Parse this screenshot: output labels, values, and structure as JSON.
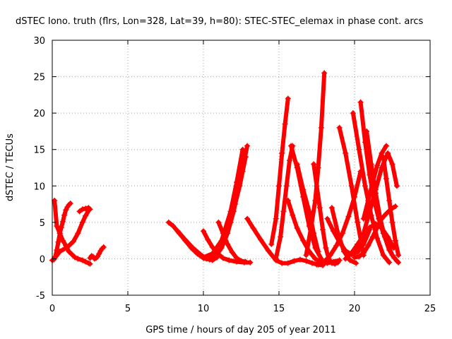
{
  "chart_data": {
    "type": "scatter",
    "title": "dSTEC Iono. truth (flrs, Lon=328, Lat=39, h=80): STEC-STEC_elemax in phase cont. arcs",
    "xlabel": "GPS time / hours of day 205 of year 2011",
    "ylabel": "dSTEC  / TECUs",
    "xlim": [
      0,
      25
    ],
    "ylim": [
      -5,
      30
    ],
    "xticks": [
      0,
      5,
      10,
      15,
      20,
      25
    ],
    "yticks": [
      -5,
      0,
      5,
      10,
      15,
      20,
      25,
      30
    ],
    "grid": true,
    "marker": "+",
    "color": "#ff0000",
    "series": [
      {
        "x": [
          0.15,
          0.3,
          0.5,
          0.7,
          0.9,
          1.1,
          1.3,
          1.5,
          1.7,
          2.0,
          2.2,
          2.4,
          2.5
        ],
        "y": [
          8.0,
          4.5,
          3.5,
          2.5,
          1.8,
          1.0,
          0.6,
          0.2,
          0.0,
          -0.2,
          -0.4,
          -0.6,
          -0.7
        ]
      },
      {
        "x": [
          0.0,
          0.1,
          0.2,
          0.3,
          0.4,
          0.5,
          0.6,
          0.7,
          0.8,
          0.9,
          1.0,
          1.1,
          1.2
        ],
        "y": [
          -0.2,
          -0.1,
          0.3,
          1.2,
          2.3,
          3.5,
          4.3,
          5.1,
          6.0,
          6.7,
          7.1,
          7.4,
          7.6
        ]
      },
      {
        "x": [
          0.1,
          0.5,
          1.0,
          1.4,
          1.7,
          2.0,
          2.2,
          2.4
        ],
        "y": [
          -0.1,
          1.0,
          1.6,
          2.4,
          3.5,
          5.0,
          5.9,
          6.6
        ]
      },
      {
        "x": [
          1.8,
          2.0,
          2.2,
          2.4,
          2.5
        ],
        "y": [
          6.5,
          6.8,
          6.9,
          7.0,
          6.8
        ]
      },
      {
        "x": [
          2.5,
          2.6,
          2.7,
          2.8,
          2.9,
          3.0,
          3.1,
          3.2,
          3.3,
          3.4
        ],
        "y": [
          0.1,
          0.4,
          0.3,
          0.0,
          0.1,
          0.3,
          0.7,
          1.1,
          1.4,
          1.6
        ]
      },
      {
        "x": [
          7.7,
          8.0,
          8.4,
          8.8,
          9.2,
          9.6,
          10.0,
          10.4,
          10.8,
          11.2,
          11.6,
          12.0,
          12.3,
          12.6,
          12.9
        ],
        "y": [
          5.0,
          4.5,
          3.5,
          2.5,
          1.5,
          0.7,
          0.1,
          -0.1,
          0.3,
          1.5,
          3.5,
          6.5,
          9.5,
          12.5,
          15.5
        ]
      },
      {
        "x": [
          8.3,
          8.8,
          9.3,
          9.8,
          10.2,
          10.6,
          10.9
        ],
        "y": [
          3.8,
          2.6,
          1.5,
          0.6,
          0.0,
          -0.2,
          0.2
        ]
      },
      {
        "x": [
          10.0,
          10.3,
          10.6,
          10.9,
          11.3,
          11.7,
          12.2,
          12.7,
          13.1
        ],
        "y": [
          3.8,
          2.6,
          1.6,
          0.8,
          0.1,
          -0.2,
          -0.4,
          -0.5,
          -0.5
        ]
      },
      {
        "x": [
          10.0,
          10.6,
          11.2,
          11.8,
          12.2,
          12.6
        ],
        "y": [
          0.2,
          0.7,
          2.5,
          6.5,
          10.5,
          15.0
        ]
      },
      {
        "x": [
          11.0,
          11.3,
          11.6,
          11.9,
          12.2,
          12.5,
          12.8
        ],
        "y": [
          5.0,
          3.5,
          2.0,
          0.9,
          0.1,
          -0.3,
          -0.4
        ]
      },
      {
        "x": [
          11.8,
          12.1,
          12.4,
          12.6,
          12.8
        ],
        "y": [
          5.0,
          7.5,
          10.0,
          12.0,
          14.0
        ]
      },
      {
        "x": [
          12.9,
          13.3,
          13.8,
          14.3,
          14.8,
          15.2,
          15.6,
          16.0,
          16.4,
          16.8,
          17.2,
          17.6,
          17.9
        ],
        "y": [
          5.5,
          4.2,
          2.6,
          1.1,
          -0.2,
          -0.6,
          -0.6,
          -0.3,
          -0.1,
          -0.3,
          -0.6,
          -0.8,
          -0.9
        ]
      },
      {
        "x": [
          14.5,
          14.8,
          15.0,
          15.2,
          15.4,
          15.6
        ],
        "y": [
          2.0,
          5.5,
          10.0,
          14.5,
          18.5,
          22.0
        ]
      },
      {
        "x": [
          14.8,
          15.1,
          15.3,
          15.5,
          15.7,
          15.9
        ],
        "y": [
          0.0,
          3.0,
          6.5,
          10.0,
          13.5,
          15.5
        ]
      },
      {
        "x": [
          15.6,
          15.9,
          16.2,
          16.6,
          17.0,
          17.4,
          17.8,
          18.2,
          18.6,
          19.0
        ],
        "y": [
          8.0,
          6.0,
          4.2,
          2.5,
          1.0,
          0.0,
          -0.5,
          -0.6,
          -0.4,
          -0.2
        ]
      },
      {
        "x": [
          15.8,
          16.2,
          16.6,
          17.0,
          17.4,
          17.8
        ],
        "y": [
          15.5,
          12.5,
          8.5,
          4.5,
          1.5,
          0.0
        ]
      },
      {
        "x": [
          16.2,
          16.6,
          17.0,
          17.3,
          17.6
        ],
        "y": [
          13.0,
          9.5,
          6.5,
          3.5,
          1.0
        ]
      },
      {
        "x": [
          16.8,
          17.1,
          17.4,
          17.6,
          17.8,
          18.0
        ],
        "y": [
          0.5,
          4.0,
          8.0,
          12.5,
          18.0,
          25.5
        ]
      },
      {
        "x": [
          17.3,
          17.5,
          17.7,
          17.9,
          18.1,
          18.3,
          18.5,
          18.7,
          18.9
        ],
        "y": [
          13.0,
          10.0,
          7.0,
          4.0,
          1.5,
          0.0,
          -0.6,
          -0.7,
          -0.5
        ]
      },
      {
        "x": [
          17.5,
          18.0,
          18.4,
          18.8,
          19.2,
          19.6,
          20.0,
          20.4
        ],
        "y": [
          -0.8,
          -0.4,
          0.5,
          1.8,
          3.5,
          5.8,
          8.5,
          12.0
        ]
      },
      {
        "x": [
          18.2,
          18.6,
          19.0,
          19.4,
          19.8,
          20.2,
          20.6,
          21.0
        ],
        "y": [
          5.5,
          3.8,
          2.3,
          1.1,
          0.6,
          0.9,
          2.0,
          4.0
        ]
      },
      {
        "x": [
          18.5,
          18.9,
          19.3,
          19.7,
          20.1
        ],
        "y": [
          7.0,
          3.5,
          1.0,
          -0.2,
          -0.6
        ]
      },
      {
        "x": [
          19.0,
          19.4,
          19.8,
          20.2,
          20.6
        ],
        "y": [
          18.0,
          14.5,
          10.0,
          5.0,
          0.5
        ]
      },
      {
        "x": [
          19.4,
          19.8,
          20.2,
          20.6,
          21.0,
          21.4,
          21.8,
          22.2,
          22.6
        ],
        "y": [
          0.0,
          0.8,
          2.0,
          3.2,
          4.3,
          4.8,
          4.2,
          3.0,
          1.5
        ]
      },
      {
        "x": [
          19.9,
          20.3,
          20.7,
          21.1,
          21.5,
          21.9,
          22.3
        ],
        "y": [
          20.0,
          15.0,
          10.0,
          6.0,
          2.8,
          0.5,
          -0.5
        ]
      },
      {
        "x": [
          20.4,
          20.7,
          21.0,
          21.3,
          21.6,
          21.9,
          22.2,
          22.5,
          22.8
        ],
        "y": [
          21.5,
          16.0,
          11.5,
          8.0,
          5.5,
          3.5,
          2.0,
          0.5,
          -0.3
        ]
      },
      {
        "x": [
          20.0,
          20.3,
          20.6,
          20.9,
          21.2,
          21.5,
          21.8,
          22.1,
          22.4,
          22.7
        ],
        "y": [
          0.2,
          0.3,
          0.8,
          1.8,
          3.0,
          4.3,
          5.5,
          6.2,
          6.8,
          7.2
        ]
      },
      {
        "x": [
          20.2,
          20.6,
          21.0,
          21.4,
          21.8,
          22.2,
          22.5,
          22.8
        ],
        "y": [
          1.0,
          3.5,
          6.5,
          9.5,
          12.5,
          14.5,
          13.0,
          10.0
        ]
      },
      {
        "x": [
          20.6,
          20.9,
          21.2,
          21.5,
          21.8,
          22.1
        ],
        "y": [
          5.5,
          8.0,
          10.5,
          12.8,
          14.5,
          15.5
        ]
      },
      {
        "x": [
          20.8,
          21.1,
          21.4,
          21.7,
          22.0,
          22.3,
          22.6,
          22.9
        ],
        "y": [
          17.5,
          13.0,
          9.0,
          5.5,
          3.0,
          1.2,
          0.2,
          -0.5
        ]
      },
      {
        "x": [
          21.9,
          22.1,
          22.3,
          22.5,
          22.7,
          22.9
        ],
        "y": [
          14.0,
          11.0,
          8.0,
          5.0,
          2.5,
          0.5
        ]
      }
    ]
  }
}
